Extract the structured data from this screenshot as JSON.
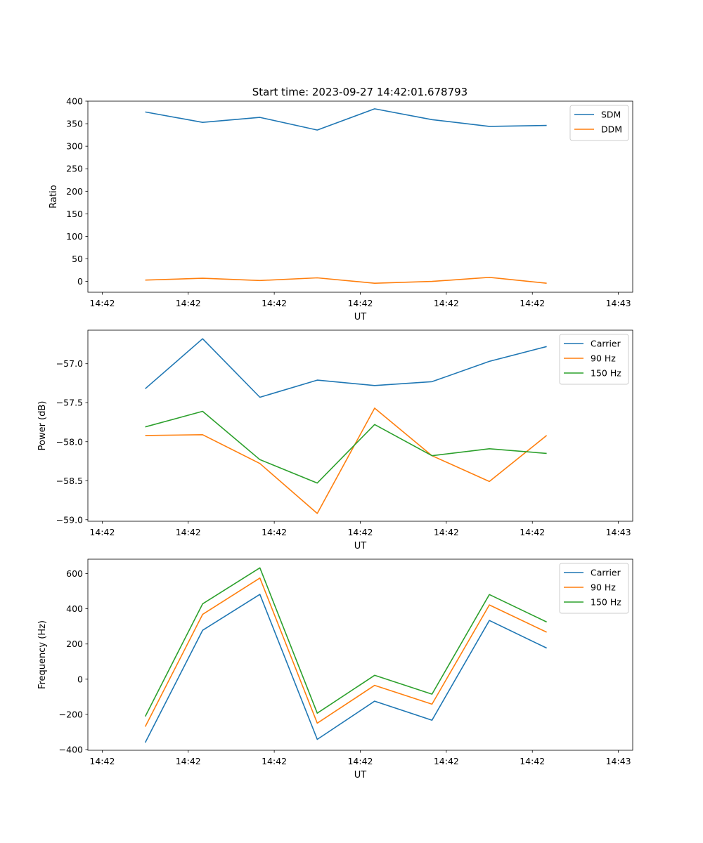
{
  "title": "Start time: 2023-09-27 14:42:01.678793",
  "chart_data": [
    {
      "type": "line",
      "xlabel": "UT",
      "ylabel": "Ratio",
      "ylim": [
        -24,
        400
      ],
      "yticks": [
        0,
        50,
        100,
        150,
        200,
        250,
        300,
        350,
        400
      ],
      "ytick_labels": [
        "0",
        "50",
        "100",
        "150",
        "200",
        "250",
        "300",
        "350",
        "400"
      ],
      "xlim": [
        -0.25,
        9.25
      ],
      "xticks": [
        0,
        1.5,
        3,
        4.5,
        6,
        7.5,
        9
      ],
      "xtick_labels": [
        "14:42",
        "14:42",
        "14:42",
        "14:42",
        "14:42",
        "14:42",
        "14:43"
      ],
      "x": [
        0.75,
        1.75,
        2.75,
        3.75,
        4.75,
        5.75,
        6.75,
        7.75
      ],
      "legend": "top-right",
      "series": [
        {
          "name": "SDM",
          "color": "#1f77b4",
          "values": [
            376,
            353,
            364,
            336,
            383,
            359,
            344,
            346
          ]
        },
        {
          "name": "DDM",
          "color": "#ff7f0e",
          "values": [
            3,
            7,
            2,
            8,
            -4,
            0,
            9,
            -4
          ]
        }
      ]
    },
    {
      "type": "line",
      "xlabel": "UT",
      "ylabel": "Power (dB)",
      "ylim": [
        -59.02,
        -56.57
      ],
      "yticks": [
        -59.0,
        -58.5,
        -58.0,
        -57.5,
        -57.0
      ],
      "ytick_labels": [
        "−59.0",
        "−58.5",
        "−58.0",
        "−57.5",
        "−57.0"
      ],
      "xlim": [
        -0.25,
        9.25
      ],
      "xticks": [
        0,
        1.5,
        3,
        4.5,
        6,
        7.5,
        9
      ],
      "xtick_labels": [
        "14:42",
        "14:42",
        "14:42",
        "14:42",
        "14:42",
        "14:42",
        "14:43"
      ],
      "x": [
        0.75,
        1.75,
        2.75,
        3.75,
        4.75,
        5.75,
        6.75,
        7.75
      ],
      "legend": "top-right",
      "series": [
        {
          "name": "Carrier",
          "color": "#1f77b4",
          "values": [
            -57.32,
            -56.68,
            -57.43,
            -57.21,
            -57.28,
            -57.23,
            -56.97,
            -56.78
          ]
        },
        {
          "name": "90 Hz",
          "color": "#ff7f0e",
          "values": [
            -57.92,
            -57.91,
            -58.28,
            -58.92,
            -57.57,
            -58.18,
            -58.51,
            -57.92
          ]
        },
        {
          "name": "150 Hz",
          "color": "#2ca02c",
          "values": [
            -57.81,
            -57.61,
            -58.23,
            -58.53,
            -57.78,
            -58.18,
            -58.09,
            -58.15
          ]
        }
      ]
    },
    {
      "type": "line",
      "xlabel": "UT",
      "ylabel": "Frequency (Hz)",
      "ylim": [
        -404,
        682
      ],
      "yticks": [
        -400,
        -200,
        0,
        200,
        400,
        600
      ],
      "ytick_labels": [
        "−400",
        "−200",
        "0",
        "200",
        "400",
        "600"
      ],
      "xlim": [
        -0.25,
        9.25
      ],
      "xticks": [
        0,
        1.5,
        3,
        4.5,
        6,
        7.5,
        9
      ],
      "xtick_labels": [
        "14:42",
        "14:42",
        "14:42",
        "14:42",
        "14:42",
        "14:42",
        "14:43"
      ],
      "x": [
        0.75,
        1.75,
        2.75,
        3.75,
        4.75,
        5.75,
        6.75,
        7.75
      ],
      "legend": "top-right",
      "series": [
        {
          "name": "Carrier",
          "color": "#1f77b4",
          "values": [
            -360,
            278,
            482,
            -342,
            -125,
            -233,
            334,
            177
          ]
        },
        {
          "name": "90 Hz",
          "color": "#ff7f0e",
          "values": [
            -270,
            368,
            575,
            -250,
            -35,
            -142,
            422,
            267
          ]
        },
        {
          "name": "150 Hz",
          "color": "#2ca02c",
          "values": [
            -212,
            428,
            633,
            -193,
            22,
            -85,
            481,
            325
          ]
        }
      ]
    }
  ]
}
